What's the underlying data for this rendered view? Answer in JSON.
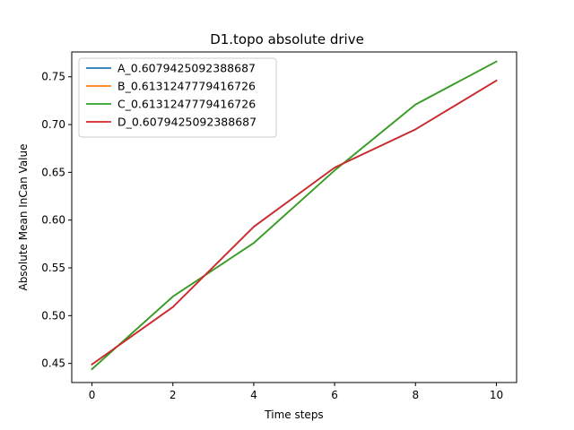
{
  "chart_data": {
    "type": "line",
    "title": "D1.topo absolute drive",
    "xlabel": "Time steps",
    "ylabel": "Absolute Mean InCan Value",
    "xlim": [
      -0.5,
      10.5
    ],
    "ylim": [
      0.43,
      0.776
    ],
    "xticks": [
      0,
      2,
      4,
      6,
      8,
      10
    ],
    "yticks": [
      0.45,
      0.5,
      0.55,
      0.6,
      0.65,
      0.7,
      0.75
    ],
    "ytick_labels": [
      "0.45",
      "0.50",
      "0.55",
      "0.60",
      "0.65",
      "0.70",
      "0.75"
    ],
    "grid": false,
    "legend_position": "top-left",
    "x": [
      0,
      2,
      4,
      6,
      8,
      10
    ],
    "series": [
      {
        "name": "A_0.6079425092388687",
        "color": "#1f77b4",
        "values": [
          0.449,
          0.509,
          0.593,
          0.655,
          0.695,
          0.746
        ]
      },
      {
        "name": "B_0.6131247779416726",
        "color": "#ff7f0e",
        "values": [
          0.444,
          0.52,
          0.576,
          0.652,
          0.721,
          0.766
        ]
      },
      {
        "name": "C_0.6131247779416726",
        "color": "#2ca02c",
        "values": [
          0.444,
          0.52,
          0.576,
          0.652,
          0.721,
          0.766
        ]
      },
      {
        "name": "D_0.6079425092388687",
        "color": "#d62728",
        "values": [
          0.449,
          0.509,
          0.593,
          0.655,
          0.695,
          0.746
        ]
      }
    ]
  }
}
